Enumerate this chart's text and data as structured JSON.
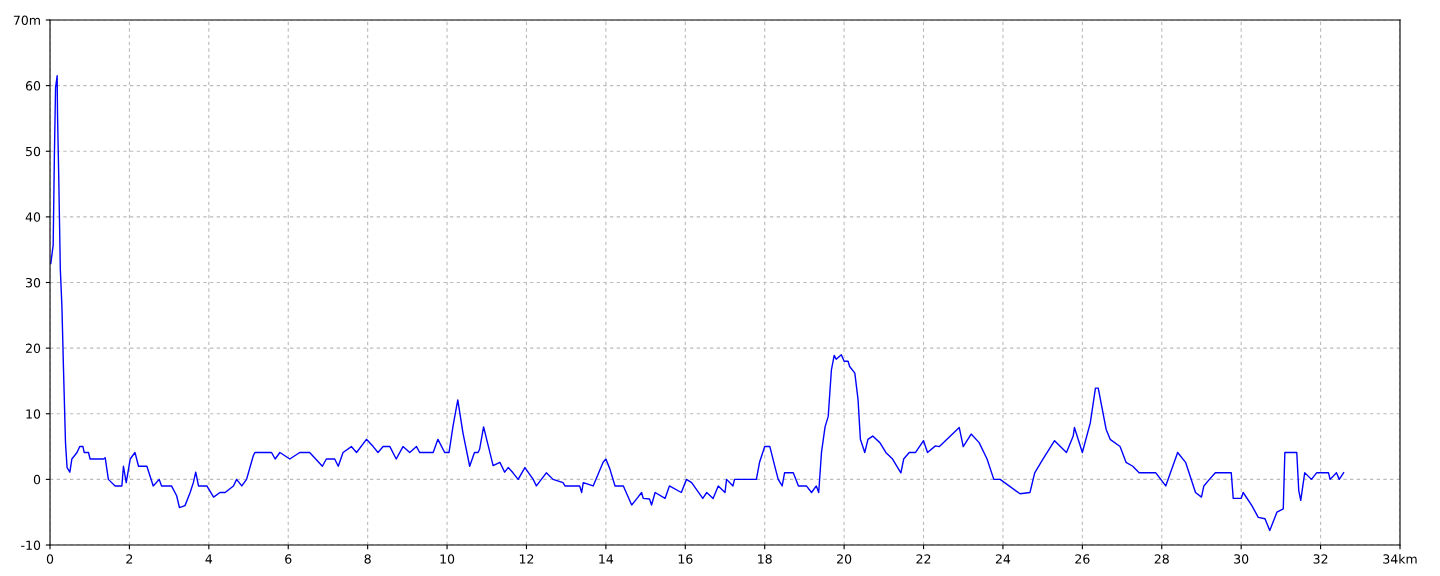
{
  "chart_data": {
    "type": "line",
    "xlim": [
      0,
      34
    ],
    "ylim": [
      -10,
      70
    ],
    "xticks": [
      0,
      2,
      4,
      6,
      8,
      10,
      12,
      14,
      16,
      18,
      20,
      22,
      24,
      26,
      28,
      30,
      32,
      {
        "value": 34,
        "label": "34km"
      }
    ],
    "yticks": [
      -10,
      0,
      10,
      20,
      30,
      40,
      50,
      60,
      {
        "value": 70,
        "label": "70m"
      }
    ],
    "grid": true,
    "line_style": "solid",
    "marker": "none",
    "series": [
      {
        "color": "#0000ff",
        "x": [
          0.02,
          0.08,
          0.11,
          0.14,
          0.18,
          0.19,
          0.22,
          0.26,
          0.3,
          0.34,
          0.39,
          0.43,
          0.5,
          0.55,
          0.68,
          0.75,
          0.83,
          0.86,
          0.97,
          1.01,
          1.35,
          1.39,
          1.47,
          1.64,
          1.81,
          1.85,
          1.92,
          2.02,
          2.14,
          2.23,
          2.44,
          2.6,
          2.75,
          2.81,
          3.06,
          3.19,
          3.26,
          3.4,
          3.53,
          3.61,
          3.67,
          3.74,
          3.95,
          4.12,
          4.28,
          4.41,
          4.62,
          4.7,
          4.83,
          4.95,
          5.12,
          5.16,
          5.58,
          5.67,
          5.79,
          6.04,
          6.29,
          6.54,
          6.86,
          6.96,
          7.17,
          7.26,
          7.38,
          7.59,
          7.72,
          7.97,
          8.14,
          8.26,
          8.39,
          8.56,
          8.72,
          8.89,
          9.06,
          9.23,
          9.31,
          9.65,
          9.77,
          9.94,
          10.05,
          10.15,
          10.27,
          10.4,
          10.57,
          10.69,
          10.78,
          10.82,
          10.92,
          11.16,
          11.33,
          11.45,
          11.54,
          11.66,
          11.79,
          11.96,
          12.17,
          12.25,
          12.5,
          12.67,
          12.92,
          12.97,
          13.34,
          13.39,
          13.43,
          13.68,
          13.93,
          14.0,
          14.1,
          14.23,
          14.44,
          14.65,
          14.77,
          14.9,
          14.94,
          15.1,
          15.15,
          15.24,
          15.49,
          15.6,
          15.9,
          16.03,
          16.16,
          16.44,
          16.54,
          16.7,
          16.83,
          17.0,
          17.04,
          17.2,
          17.24,
          17.79,
          17.87,
          18.0,
          18.13,
          18.25,
          18.34,
          18.44,
          18.5,
          18.72,
          18.85,
          19.05,
          19.18,
          19.3,
          19.36,
          19.43,
          19.52,
          19.6,
          19.68,
          19.75,
          19.8,
          19.93,
          20.0,
          20.1,
          20.14,
          20.27,
          20.35,
          20.41,
          20.52,
          20.6,
          20.72,
          20.9,
          21.05,
          21.22,
          21.43,
          21.5,
          21.64,
          21.8,
          22.0,
          22.1,
          22.3,
          22.4,
          22.9,
          23.0,
          23.2,
          23.4,
          23.6,
          23.77,
          23.93,
          24.43,
          24.68,
          24.8,
          25.0,
          25.3,
          25.6,
          25.77,
          25.8,
          26.0,
          26.2,
          26.33,
          26.4,
          26.6,
          26.7,
          26.95,
          27.1,
          27.27,
          27.43,
          27.85,
          28.1,
          28.4,
          28.6,
          28.85,
          29.0,
          29.06,
          29.2,
          29.35,
          29.75,
          29.8,
          30.0,
          30.05,
          30.27,
          30.43,
          30.6,
          30.72,
          30.9,
          31.06,
          31.1,
          31.4,
          31.45,
          31.5,
          31.6,
          31.77,
          31.9,
          32.2,
          32.24,
          32.4,
          32.47,
          32.58
        ],
        "values": [
          32.9,
          35.7,
          49,
          59.7,
          61.5,
          55.4,
          46.1,
          32,
          26.4,
          16.8,
          5.6,
          1.8,
          1.1,
          3.1,
          4.1,
          5,
          5,
          4.1,
          4.1,
          3.1,
          3.1,
          3.3,
          0,
          -1,
          -1,
          2,
          -0.5,
          3.1,
          4.1,
          2,
          2,
          -1,
          0,
          -1,
          -1,
          -2.5,
          -4.3,
          -4,
          -2,
          -0.5,
          1.1,
          -1,
          -1,
          -2.7,
          -2,
          -2,
          -1,
          0,
          -1,
          0,
          3.6,
          4.1,
          4.1,
          3.1,
          4.1,
          3.1,
          4.1,
          4.1,
          2,
          3.1,
          3.1,
          2,
          4.1,
          5,
          4.1,
          6.1,
          5,
          4.1,
          5,
          5,
          3.1,
          5,
          4.1,
          5,
          4.1,
          4.1,
          6.1,
          4.1,
          4.1,
          8.1,
          12.1,
          7.1,
          2,
          4.1,
          4.1,
          4.6,
          8,
          2.1,
          2.6,
          1.1,
          1.8,
          1,
          0,
          1.8,
          0,
          -1,
          1,
          0,
          -0.5,
          -1,
          -1,
          -2,
          -0.5,
          -1,
          2.6,
          3.1,
          1.6,
          -1,
          -1,
          -3.9,
          -3,
          -2,
          -2.9,
          -3,
          -3.9,
          -2,
          -2.9,
          -1,
          -2,
          0,
          -0.5,
          -2.9,
          -2,
          -2.9,
          -1,
          -2,
          0,
          -1,
          0,
          0,
          2.6,
          5,
          5,
          2.1,
          0,
          -1,
          1,
          1,
          -1,
          -1,
          -2,
          -1,
          -2,
          4.1,
          8,
          9.6,
          16.7,
          18.9,
          18.3,
          19,
          18,
          18,
          17.2,
          16.2,
          12.2,
          6.1,
          4.1,
          6.1,
          6.6,
          5.6,
          4.1,
          3.1,
          1,
          3.1,
          4.1,
          4.1,
          5.9,
          4.1,
          5.1,
          5,
          7.9,
          5,
          6.9,
          5.6,
          3.1,
          0,
          0,
          -2.2,
          -2,
          1,
          3,
          5.9,
          4.1,
          6.6,
          7.9,
          4.1,
          8.6,
          13.9,
          13.9,
          7.6,
          6.1,
          5,
          2.6,
          2,
          1,
          1,
          -1,
          4.1,
          2.6,
          -2,
          -2.7,
          -1,
          0,
          1,
          1,
          -2.9,
          -2.9,
          -2,
          -4,
          -5.8,
          -6,
          -7.8,
          -5,
          -4.5,
          4.1,
          4.1,
          -1.7,
          -3.2,
          1,
          0,
          1,
          1,
          0,
          1,
          0,
          1
        ]
      }
    ]
  }
}
